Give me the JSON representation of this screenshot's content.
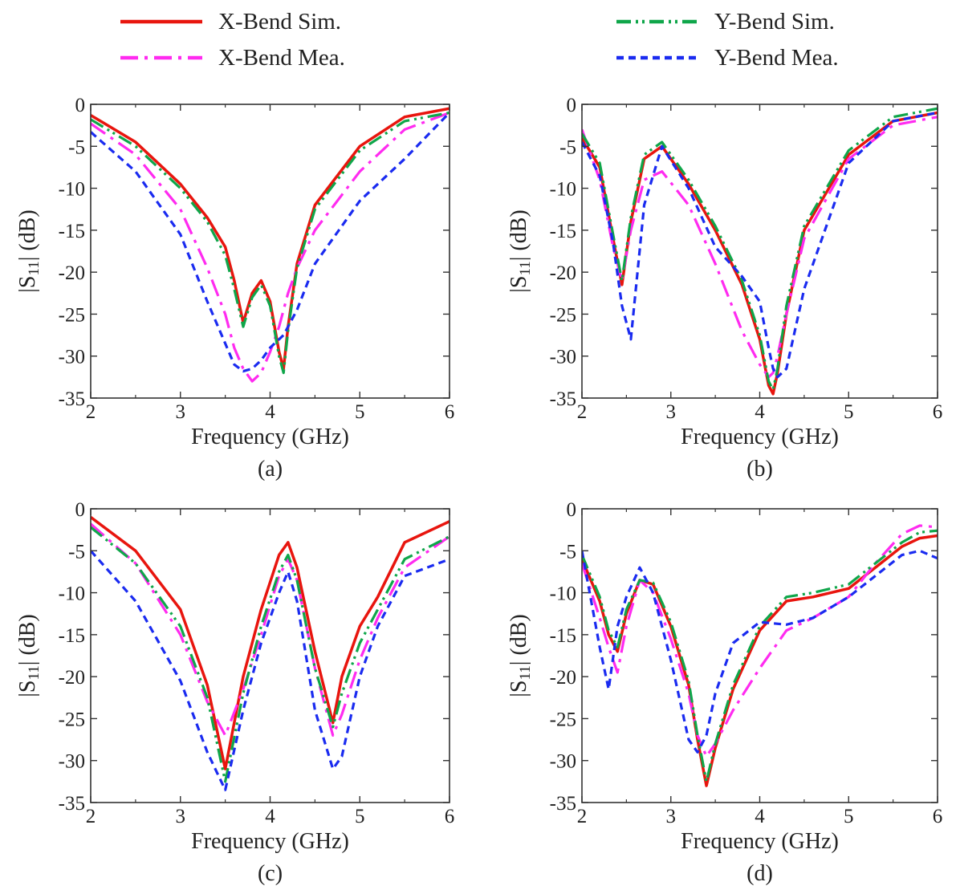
{
  "legend": {
    "entries": [
      {
        "label": "X-Bend Sim.",
        "color": "#e8150e",
        "dash": "solid"
      },
      {
        "label": "X-Bend Mea.",
        "color": "#ff2bf0",
        "dash": "dashdot"
      },
      {
        "label": "Y-Bend Sim.",
        "color": "#0fa64a",
        "dash": "dashdotdot"
      },
      {
        "label": "Y-Bend Mea.",
        "color": "#1a2bf0",
        "dash": "dashed"
      }
    ]
  },
  "chart_data": [
    {
      "type": "line",
      "caption": "(a)",
      "xlabel": "Frequency (GHz)",
      "ylabel_main": "|S",
      "ylabel_sub": "11",
      "ylabel_unit": "| (dB)",
      "xlim": [
        2,
        6
      ],
      "ylim": [
        -35,
        0
      ],
      "xticks": [
        2,
        3,
        4,
        5,
        6
      ],
      "yticks": [
        0,
        -5,
        -10,
        -15,
        -20,
        -25,
        -30,
        -35
      ],
      "x": [
        2.0,
        2.5,
        3.0,
        3.3,
        3.5,
        3.6,
        3.7,
        3.8,
        3.9,
        4.0,
        4.1,
        4.15,
        4.2,
        4.3,
        4.5,
        5.0,
        5.5,
        6.0
      ],
      "series": [
        {
          "label": "X-Bend Sim.",
          "values": [
            -1.3,
            -4.5,
            -9.5,
            -13.5,
            -17.0,
            -21.0,
            -26.0,
            -22.5,
            -21.0,
            -23.5,
            -29.5,
            -31.5,
            -26.5,
            -19.0,
            -12.0,
            -5.0,
            -1.5,
            -0.5
          ]
        },
        {
          "label": "X-Bend Mea.",
          "values": [
            -2.3,
            -6.0,
            -12.5,
            -19.5,
            -25.0,
            -29.0,
            -31.5,
            -33.0,
            -32.0,
            -29.5,
            -26.5,
            -24.5,
            -22.5,
            -19.5,
            -15.0,
            -8.0,
            -3.0,
            -1.0
          ]
        },
        {
          "label": "Y-Bend Sim.",
          "values": [
            -1.8,
            -5.0,
            -10.0,
            -14.0,
            -18.0,
            -22.0,
            -26.5,
            -23.0,
            -21.5,
            -24.0,
            -30.0,
            -32.0,
            -27.0,
            -19.5,
            -12.5,
            -5.5,
            -2.0,
            -1.0
          ]
        },
        {
          "label": "Y-Bend Mea.",
          "values": [
            -3.3,
            -8.0,
            -15.5,
            -23.5,
            -28.5,
            -31.0,
            -31.8,
            -31.5,
            -30.5,
            -29.0,
            -28.0,
            -27.5,
            -26.5,
            -24.5,
            -19.0,
            -11.5,
            -6.5,
            -1.0
          ]
        }
      ]
    },
    {
      "type": "line",
      "caption": "(b)",
      "xlabel": "Frequency (GHz)",
      "ylabel_main": "|S",
      "ylabel_sub": "11",
      "ylabel_unit": "| (dB)",
      "xlim": [
        2,
        6
      ],
      "ylim": [
        -35,
        0
      ],
      "xticks": [
        2,
        3,
        4,
        5,
        6
      ],
      "yticks": [
        0,
        -5,
        -10,
        -15,
        -20,
        -25,
        -30,
        -35
      ],
      "x": [
        2.0,
        2.2,
        2.35,
        2.45,
        2.55,
        2.7,
        2.9,
        3.2,
        3.5,
        3.8,
        4.0,
        4.1,
        4.15,
        4.2,
        4.3,
        4.5,
        5.0,
        5.5,
        6.0
      ],
      "series": [
        {
          "label": "X-Bend Sim.",
          "values": [
            -4.0,
            -7.5,
            -16.0,
            -21.5,
            -14.0,
            -6.5,
            -5.0,
            -9.5,
            -15.0,
            -21.5,
            -28.0,
            -33.5,
            -34.5,
            -32.0,
            -25.0,
            -15.0,
            -6.0,
            -2.0,
            -1.0
          ]
        },
        {
          "label": "X-Bend Mea.",
          "values": [
            -3.0,
            -9.0,
            -17.0,
            -21.0,
            -15.0,
            -9.0,
            -8.0,
            -12.0,
            -19.0,
            -27.0,
            -31.0,
            -32.5,
            -32.0,
            -30.0,
            -25.0,
            -16.0,
            -6.5,
            -2.5,
            -1.5
          ]
        },
        {
          "label": "Y-Bend Sim.",
          "values": [
            -3.5,
            -7.0,
            -15.5,
            -21.0,
            -13.5,
            -6.0,
            -4.5,
            -9.0,
            -14.5,
            -21.0,
            -27.5,
            -33.0,
            -34.0,
            -31.5,
            -24.0,
            -14.5,
            -5.5,
            -1.5,
            -0.5
          ]
        },
        {
          "label": "Y-Bend Mea.",
          "values": [
            -4.5,
            -8.5,
            -16.5,
            -24.0,
            -28.0,
            -12.0,
            -5.0,
            -10.0,
            -17.0,
            -20.5,
            -23.5,
            -29.0,
            -31.5,
            -32.5,
            -31.5,
            -22.0,
            -7.0,
            -2.0,
            -1.0
          ]
        }
      ]
    },
    {
      "type": "line",
      "caption": "(c)",
      "xlabel": "Frequency (GHz)",
      "ylabel_main": "|S",
      "ylabel_sub": "11",
      "ylabel_unit": "| (dB)",
      "xlim": [
        2,
        6
      ],
      "ylim": [
        -35,
        0
      ],
      "xticks": [
        2,
        3,
        4,
        5,
        6
      ],
      "yticks": [
        0,
        -5,
        -10,
        -15,
        -20,
        -25,
        -30,
        -35
      ],
      "x": [
        2.0,
        2.5,
        3.0,
        3.3,
        3.5,
        3.7,
        3.9,
        4.1,
        4.2,
        4.3,
        4.5,
        4.7,
        4.8,
        5.0,
        5.2,
        5.5,
        6.0
      ],
      "series": [
        {
          "label": "X-Bend Sim.",
          "values": [
            -1.0,
            -5.0,
            -12.0,
            -21.0,
            -31.0,
            -20.0,
            -12.0,
            -5.5,
            -4.0,
            -7.0,
            -17.0,
            -25.5,
            -20.0,
            -14.0,
            -10.5,
            -4.0,
            -1.5
          ]
        },
        {
          "label": "X-Bend Mea.",
          "values": [
            -1.8,
            -6.5,
            -15.0,
            -23.0,
            -27.0,
            -21.5,
            -15.0,
            -8.0,
            -6.0,
            -8.5,
            -19.0,
            -27.0,
            -24.5,
            -18.0,
            -13.0,
            -7.0,
            -3.3
          ]
        },
        {
          "label": "Y-Bend Sim.",
          "values": [
            -2.2,
            -6.5,
            -14.0,
            -22.5,
            -32.5,
            -22.0,
            -14.0,
            -7.5,
            -5.5,
            -8.5,
            -19.0,
            -26.0,
            -22.0,
            -16.0,
            -12.0,
            -6.0,
            -3.3
          ]
        },
        {
          "label": "Y-Bend Mea.",
          "values": [
            -5.0,
            -11.0,
            -20.5,
            -29.0,
            -33.5,
            -24.0,
            -16.0,
            -10.0,
            -7.5,
            -11.0,
            -24.0,
            -31.0,
            -29.5,
            -20.0,
            -14.0,
            -8.0,
            -6.0
          ]
        }
      ]
    },
    {
      "type": "line",
      "caption": "(d)",
      "xlabel": "Frequency (GHz)",
      "ylabel_main": "|S",
      "ylabel_sub": "11",
      "ylabel_unit": "| (dB)",
      "xlim": [
        2,
        6
      ],
      "ylim": [
        -35,
        0
      ],
      "xticks": [
        2,
        3,
        4,
        5,
        6
      ],
      "yticks": [
        0,
        -5,
        -10,
        -15,
        -20,
        -25,
        -30,
        -35
      ],
      "x": [
        2.0,
        2.2,
        2.3,
        2.4,
        2.5,
        2.65,
        2.8,
        3.0,
        3.2,
        3.3,
        3.4,
        3.5,
        3.7,
        4.0,
        4.3,
        4.6,
        5.0,
        5.3,
        5.6,
        5.8,
        6.0
      ],
      "series": [
        {
          "label": "X-Bend Sim.",
          "values": [
            -6.0,
            -11.0,
            -15.0,
            -17.0,
            -12.5,
            -8.5,
            -9.0,
            -14.0,
            -21.0,
            -27.5,
            -33.0,
            -28.5,
            -21.5,
            -14.5,
            -11.0,
            -10.5,
            -9.5,
            -7.0,
            -4.5,
            -3.5,
            -3.2
          ]
        },
        {
          "label": "X-Bend Mea.",
          "values": [
            -6.5,
            -13.0,
            -16.5,
            -19.5,
            -14.0,
            -8.5,
            -10.0,
            -15.5,
            -22.0,
            -27.0,
            -29.5,
            -28.0,
            -24.0,
            -19.0,
            -14.5,
            -13.0,
            -10.5,
            -6.5,
            -3.0,
            -2.0,
            -2.2
          ]
        },
        {
          "label": "Y-Bend Sim.",
          "values": [
            -5.5,
            -10.5,
            -14.5,
            -16.5,
            -12.0,
            -8.5,
            -8.8,
            -13.5,
            -20.5,
            -27.0,
            -32.5,
            -28.0,
            -21.0,
            -14.0,
            -10.5,
            -10.0,
            -9.0,
            -6.5,
            -4.0,
            -2.8,
            -2.6
          ]
        },
        {
          "label": "Y-Bend Mea.",
          "values": [
            -5.0,
            -16.5,
            -21.5,
            -14.0,
            -10.5,
            -7.0,
            -10.0,
            -18.0,
            -27.5,
            -29.0,
            -27.0,
            -22.0,
            -16.0,
            -13.5,
            -13.8,
            -13.0,
            -10.5,
            -8.0,
            -5.5,
            -5.0,
            -5.9
          ]
        }
      ]
    }
  ]
}
